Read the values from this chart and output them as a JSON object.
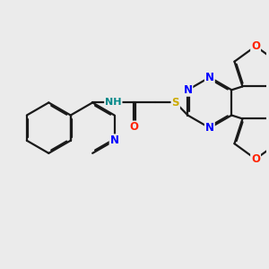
{
  "bg_color": "#ebebeb",
  "bond_color": "#1a1a1a",
  "N_color": "#0000ff",
  "O_color": "#ff2200",
  "S_color": "#ccaa00",
  "NH_color": "#008888",
  "bond_width": 1.6,
  "dbo": 0.06,
  "font_size": 8.5,
  "fig_width": 3.0,
  "fig_height": 3.0,
  "xlim": [
    0,
    12
  ],
  "ylim": [
    0,
    12
  ]
}
